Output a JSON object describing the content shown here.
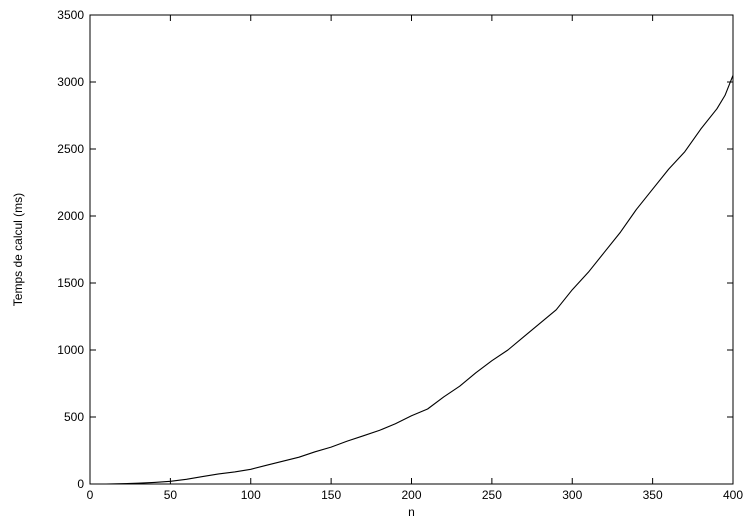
{
  "chart_data": {
    "type": "line",
    "title": "",
    "xlabel": "n",
    "ylabel": "Temps de calcul (ms)",
    "xlim": [
      0,
      400
    ],
    "ylim": [
      0,
      3500
    ],
    "xticks": [
      0,
      50,
      100,
      150,
      200,
      250,
      300,
      350,
      400
    ],
    "yticks": [
      0,
      500,
      1000,
      1500,
      2000,
      2500,
      3000,
      3500
    ],
    "grid": false,
    "legend": "none",
    "series": [
      {
        "color": "#000000",
        "x": [
          0,
          10,
          20,
          30,
          40,
          50,
          60,
          70,
          80,
          90,
          100,
          110,
          120,
          130,
          140,
          150,
          160,
          170,
          180,
          190,
          200,
          210,
          220,
          230,
          240,
          250,
          260,
          270,
          280,
          290,
          300,
          310,
          320,
          330,
          340,
          350,
          360,
          370,
          380,
          390,
          395,
          400
        ],
        "y": [
          0,
          0,
          2,
          6,
          12,
          20,
          35,
          55,
          75,
          90,
          110,
          140,
          170,
          200,
          240,
          275,
          320,
          360,
          400,
          450,
          510,
          560,
          650,
          730,
          830,
          920,
          1000,
          1100,
          1200,
          1300,
          1450,
          1580,
          1730,
          1880,
          2050,
          2200,
          2350,
          2480,
          2650,
          2800,
          2900,
          3050
        ]
      }
    ]
  }
}
